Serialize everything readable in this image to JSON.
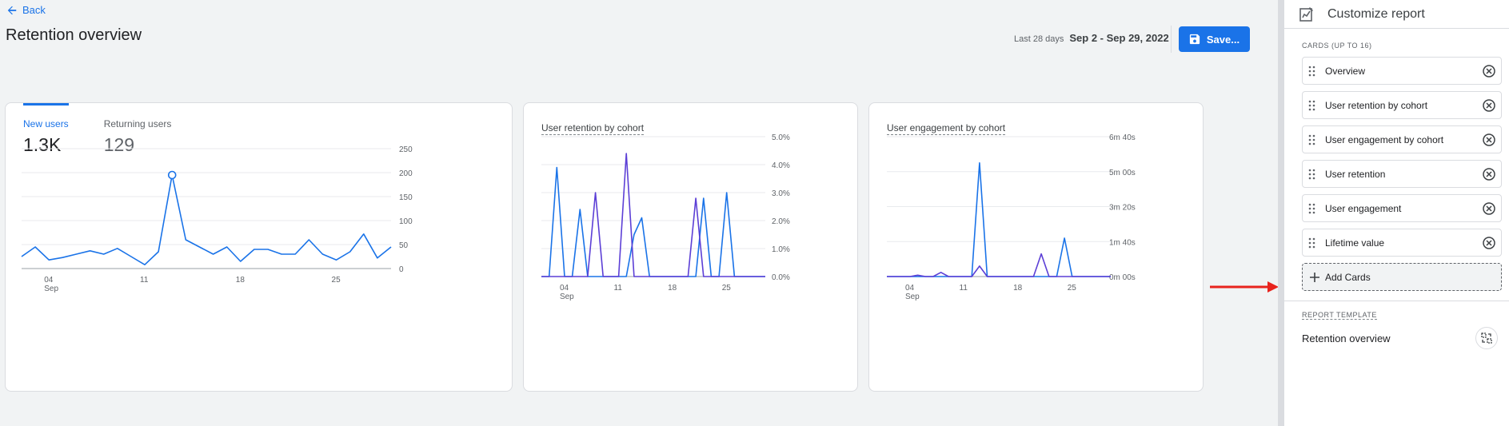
{
  "header": {
    "back_label": "Back",
    "title": "Retention overview",
    "date_small": "Last 28 days",
    "date_range": "Sep 2 - Sep 29, 2022",
    "save_label": "Save..."
  },
  "card1": {
    "tabs": [
      {
        "label": "New users",
        "value": "1.3K"
      },
      {
        "label": "Returning users",
        "value": "129"
      }
    ]
  },
  "card2": {
    "title": "User retention by cohort"
  },
  "card3": {
    "title": "User engagement by cohort"
  },
  "panel": {
    "title": "Customize report",
    "cards_label": "CARDS (UP TO 16)",
    "cards": [
      {
        "label": "Overview"
      },
      {
        "label": "User retention by cohort"
      },
      {
        "label": "User engagement by cohort"
      },
      {
        "label": "User retention"
      },
      {
        "label": "User engagement"
      },
      {
        "label": "Lifetime value"
      }
    ],
    "add_label": "Add Cards",
    "template_label": "REPORT TEMPLATE",
    "template_name": "Retention overview"
  },
  "colors": {
    "accent": "#1a73e8",
    "series_alt": "#5c3fd6",
    "annotation_arrow": "#e8231d"
  },
  "chart_data": [
    {
      "type": "line",
      "x_ticks": [
        "04",
        "11",
        "18",
        "25"
      ],
      "x_sublabel": "Sep",
      "y_ticks": [
        "250",
        "200",
        "150",
        "100",
        "50",
        "0"
      ],
      "ylim": [
        0,
        250
      ],
      "series": [
        {
          "x": [
            2,
            3,
            4,
            5,
            6,
            7,
            8,
            9,
            10,
            11,
            12,
            13,
            14,
            15,
            16,
            17,
            18,
            19,
            20,
            21,
            22,
            23,
            24,
            25,
            26,
            27,
            28,
            29
          ],
          "values": [
            25,
            45,
            18,
            23,
            30,
            37,
            30,
            42,
            25,
            8,
            35,
            195,
            60,
            45,
            30,
            45,
            15,
            40,
            40,
            30,
            30,
            60,
            30,
            18,
            35,
            72,
            22,
            45
          ],
          "color": "#1a73e8"
        }
      ],
      "marker": {
        "x": 13,
        "value": 195
      },
      "grid": true
    },
    {
      "type": "line",
      "x_ticks": [
        "04",
        "11",
        "18",
        "25"
      ],
      "x_sublabel": "Sep",
      "y_ticks": [
        "5.0%",
        "4.0%",
        "3.0%",
        "2.0%",
        "1.0%",
        "0.0%"
      ],
      "ylim": [
        0,
        5
      ],
      "series": [
        {
          "x": [
            1,
            2,
            3,
            4,
            5,
            6,
            7,
            8,
            9,
            10,
            11,
            12,
            13,
            14,
            15,
            16,
            17,
            18,
            19,
            20,
            21,
            22,
            23,
            24,
            25,
            26,
            27,
            28,
            29,
            30
          ],
          "values": [
            0,
            0,
            3.9,
            0,
            0,
            2.4,
            0,
            0,
            0,
            0,
            0,
            0,
            1.5,
            2.1,
            0,
            0,
            0,
            0,
            0,
            0,
            0,
            2.8,
            0,
            0,
            3.0,
            0,
            0,
            0,
            0,
            0
          ],
          "color": "#1a73e8"
        },
        {
          "x": [
            1,
            2,
            3,
            4,
            5,
            6,
            7,
            8,
            9,
            10,
            11,
            12,
            13,
            14,
            15,
            16,
            17,
            18,
            19,
            20,
            21,
            22,
            23,
            24,
            25,
            26,
            27,
            28,
            29,
            30
          ],
          "values": [
            0,
            0,
            0,
            0,
            0,
            0,
            0,
            3.0,
            0,
            0,
            0,
            4.4,
            0,
            0,
            0,
            0,
            0,
            0,
            0,
            0,
            2.8,
            0,
            0,
            0,
            0,
            0,
            0,
            0,
            0,
            0
          ],
          "color": "#5c3fd6"
        }
      ],
      "grid": true
    },
    {
      "type": "line",
      "x_ticks": [
        "04",
        "11",
        "18",
        "25"
      ],
      "x_sublabel": "Sep",
      "y_ticks": [
        "6m 40s",
        "5m 00s",
        "3m 20s",
        "1m 40s",
        "0m 00s"
      ],
      "ylim": [
        0,
        400
      ],
      "series": [
        {
          "x": [
            1,
            2,
            3,
            4,
            5,
            6,
            7,
            8,
            9,
            10,
            11,
            12,
            13,
            14,
            15,
            16,
            17,
            18,
            19,
            20,
            21,
            22,
            23,
            24,
            25,
            26,
            27,
            28,
            29,
            30
          ],
          "values": [
            0,
            0,
            0,
            0,
            0,
            0,
            0,
            0,
            0,
            0,
            0,
            0,
            325,
            0,
            0,
            0,
            0,
            0,
            0,
            0,
            0,
            0,
            0,
            110,
            0,
            0,
            0,
            0,
            0,
            0
          ],
          "color": "#1a73e8"
        },
        {
          "x": [
            1,
            2,
            3,
            4,
            5,
            6,
            7,
            8,
            9,
            10,
            11,
            12,
            13,
            14,
            15,
            16,
            17,
            18,
            19,
            20,
            21,
            22,
            23,
            24,
            25,
            26,
            27,
            28,
            29,
            30
          ],
          "values": [
            0,
            0,
            0,
            0,
            4,
            0,
            0,
            12,
            0,
            0,
            0,
            0,
            30,
            0,
            0,
            0,
            0,
            0,
            0,
            0,
            65,
            0,
            0,
            0,
            0,
            0,
            0,
            0,
            0,
            0
          ],
          "color": "#5c3fd6"
        }
      ],
      "grid": true
    }
  ]
}
